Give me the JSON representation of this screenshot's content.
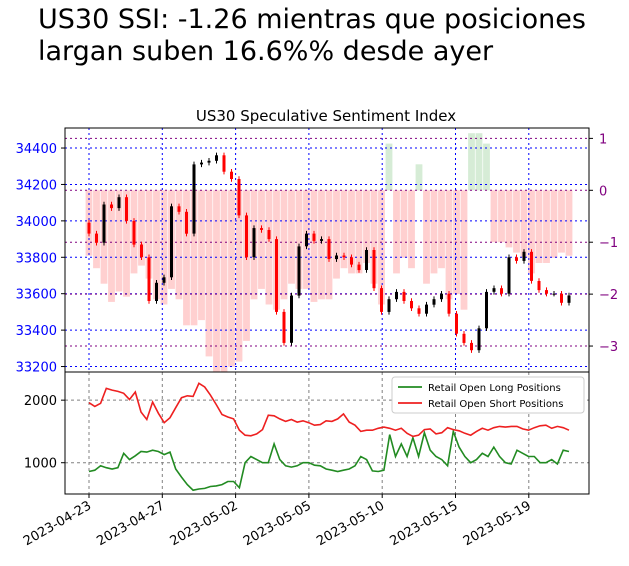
{
  "headline": {
    "line1": "US30 SSI: -1.26 mientras que posiciones",
    "line2": "largan suben 16.6%% desde ayer"
  },
  "chart_data": [
    {
      "type": "candlestick",
      "title": "US30 Speculative Sentiment Index",
      "ylim": [
        33170,
        34510
      ],
      "y_ticks": [
        33200,
        33400,
        33600,
        33800,
        34000,
        34200,
        34400
      ],
      "y_tick_color": "#0000ff",
      "y2_label_side": "right",
      "y2_ticks": [
        1,
        0,
        -1,
        -2,
        -3
      ],
      "y2_tick_color": "#800080",
      "y2lim": [
        -3.5,
        1.2
      ],
      "x_tick_labels": [
        "2023-04-23",
        "2023-04-27",
        "2023-05-02",
        "2023-05-05",
        "2023-05-10",
        "2023-05-15",
        "2023-05-19"
      ],
      "up_color": "#000000",
      "down_color": "#ff0000",
      "ssi_bar_negative_color": "#ffc0c0",
      "ssi_bar_positive_color": "#c8e6c8",
      "grid": "blue dotted",
      "price_open": [
        33990,
        33930,
        33880,
        34090,
        34070,
        34130,
        34000,
        33870,
        33800,
        33560,
        33660,
        33690,
        34080,
        34050,
        33930,
        34310,
        34320,
        34330,
        34360,
        34270,
        34230,
        34030,
        33800,
        33960,
        33950,
        33900,
        33500,
        33330,
        33590,
        33860,
        33930,
        33890,
        33900,
        33790,
        33810,
        33800,
        33760,
        33730,
        33840,
        33630,
        33500,
        33570,
        33610,
        33560,
        33520,
        33490,
        33540,
        33570,
        33600,
        33490,
        33380,
        33330,
        33290,
        33410,
        33610,
        33630,
        33600,
        33800,
        33780,
        33830,
        33670,
        33620,
        33600,
        33600,
        33550
      ],
      "price_close": [
        33930,
        33880,
        34090,
        34070,
        34130,
        34000,
        33870,
        33800,
        33560,
        33660,
        33690,
        34080,
        34050,
        33930,
        34310,
        34320,
        34330,
        34360,
        34270,
        34230,
        34030,
        33800,
        33960,
        33950,
        33900,
        33500,
        33330,
        33590,
        33860,
        33930,
        33890,
        33900,
        33790,
        33810,
        33800,
        33760,
        33730,
        33840,
        33630,
        33500,
        33570,
        33610,
        33560,
        33520,
        33490,
        33540,
        33570,
        33600,
        33490,
        33380,
        33330,
        33290,
        33410,
        33610,
        33630,
        33600,
        33800,
        33780,
        33830,
        33670,
        33620,
        33600,
        33600,
        33550,
        33590
      ],
      "ssi": [
        -1.26,
        -1.5,
        -1.8,
        -2.15,
        -1.95,
        -2.05,
        -1.6,
        -1.45,
        -1.7,
        -2.1,
        -2.2,
        -1.9,
        -2.1,
        -2.6,
        -2.6,
        -2.5,
        -3.2,
        -3.5,
        -3.5,
        -3.4,
        -3.3,
        -2.9,
        -2.1,
        -1.9,
        -2.2,
        -2.3,
        -2.1,
        -1.8,
        -1.9,
        -1.9,
        -2.15,
        -2.1,
        -2.1,
        -1.7,
        -1.5,
        -1.6,
        -1.6,
        -1.4,
        -1.8,
        -2.2,
        0.9,
        -1.6,
        -1.3,
        -1.5,
        0.5,
        -1.8,
        -1.6,
        -1.5,
        -2.1,
        -2.0,
        -2.3,
        1.1,
        1.1,
        0.9,
        -1.0,
        -1.0,
        -1.1,
        -1.2,
        -1.3,
        -1.6,
        -1.4,
        -1.4,
        -1.3,
        -1.2,
        -1.26
      ],
      "x_tick_index": [
        0,
        6,
        12,
        18,
        24,
        30,
        36
      ]
    },
    {
      "type": "line",
      "ylim": [
        500,
        2450
      ],
      "y_ticks": [
        1000,
        2000
      ],
      "legend": "top-right",
      "series": [
        {
          "name": "Retail Open Long Positions",
          "color": "#228b22",
          "values": [
            860,
            880,
            950,
            920,
            900,
            920,
            1150,
            1050,
            1110,
            1180,
            1170,
            1200,
            1180,
            1130,
            1170,
            900,
            770,
            650,
            560,
            580,
            590,
            620,
            630,
            650,
            700,
            700,
            600,
            1000,
            1100,
            1050,
            1000,
            1000,
            1300,
            1050,
            950,
            930,
            950,
            1000,
            1000,
            960,
            950,
            900,
            880,
            860,
            880,
            900,
            950,
            1100,
            1050,
            870,
            860,
            880,
            1450,
            1100,
            1300,
            1100,
            1400,
            1100,
            1480,
            1200,
            1100,
            1050,
            950,
            1500,
            1250,
            1100,
            1000,
            1050,
            1150,
            1100,
            1250,
            1100,
            1000,
            980,
            1200,
            1150,
            1100,
            1100,
            1000,
            1000,
            1050,
            980,
            1200,
            1180
          ]
        },
        {
          "name": "Retail Open Short Positions",
          "color": "#ee2020",
          "values": [
            1960,
            1900,
            1950,
            2190,
            2160,
            2140,
            2110,
            2010,
            2130,
            1810,
            1690,
            1970,
            1790,
            1640,
            1720,
            1880,
            2040,
            2070,
            2060,
            2270,
            2210,
            2080,
            1930,
            1770,
            1730,
            1700,
            1520,
            1440,
            1430,
            1460,
            1530,
            1760,
            1750,
            1700,
            1660,
            1690,
            1650,
            1670,
            1640,
            1600,
            1610,
            1670,
            1660,
            1700,
            1780,
            1650,
            1600,
            1500,
            1520,
            1520,
            1550,
            1570,
            1550,
            1520,
            1550,
            1470,
            1420,
            1440,
            1530,
            1540,
            1460,
            1480,
            1560,
            1530,
            1510,
            1470,
            1440,
            1500,
            1550,
            1520,
            1560,
            1580,
            1570,
            1580,
            1580,
            1540,
            1520,
            1560,
            1590,
            1600,
            1550,
            1580,
            1560,
            1520
          ]
        }
      ],
      "x_tick_labels": [
        "2023-04-23",
        "2023-04-27",
        "2023-05-02",
        "2023-05-05",
        "2023-05-10",
        "2023-05-15",
        "2023-05-19"
      ]
    }
  ]
}
